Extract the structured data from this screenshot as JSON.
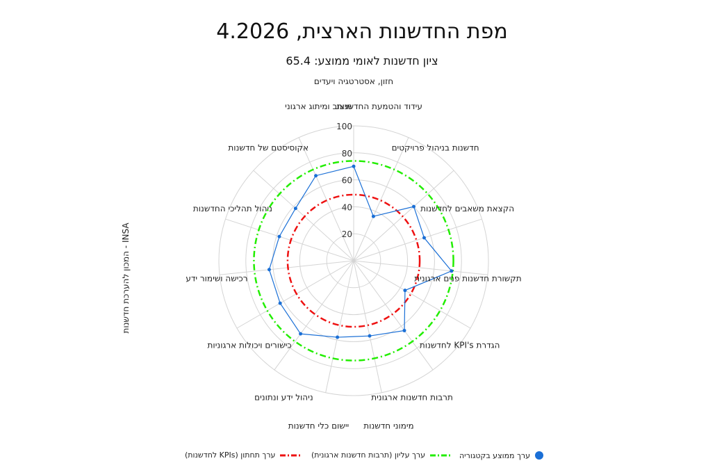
{
  "chart_data": {
    "type": "radar",
    "title": "מפת החדשנות הארצית, 4.2026",
    "subtitle": "ציון חדשנות לאומי ממוצע: 65.4",
    "ylabel": "INSA - המכון להערכת חדשנות",
    "rlim": [
      0,
      100
    ],
    "rticks": [
      20,
      40,
      60,
      80,
      100
    ],
    "grid": true,
    "legend_position": "bottom",
    "categories": [
      "חזון, אסטרטגיה ויעדים",
      "עידוד והטמעת החדשנות",
      "חדשנות בניהול פרויקטים",
      "הקצאת משאבים לחדשנות",
      "תקשורת חדשנות פנים ארגונית",
      "הגדרת KPI's לחדשנות",
      "תרבות חדשנות ארגונית",
      "מימוני חדשנות",
      "יישום כלי חדשנות",
      "ניהול ידע ונתונים",
      "כישורים ויכולות ארגוניות",
      "רכישה ושימור ידע",
      "ניהול תהליכי החדשנות",
      "אקוסיסטם של חדשנות",
      "מיצוב ומיתוג ארגוני"
    ],
    "series": [
      {
        "name": "ערך ממוצע בקטגוריה",
        "color": "#1a6fd6",
        "values": [
          70,
          36,
          60,
          55,
          73,
          44,
          64,
          57,
          58,
          67,
          63,
          63,
          58,
          58,
          69
        ]
      },
      {
        "name": "ערך עליון (תרבות חדשנות ארגונית)",
        "color": "#22ee00",
        "constant": 74
      },
      {
        "name": "ערך תחתון (KPIs לחדשנות)",
        "color": "#ee1111",
        "constant": 49
      }
    ]
  }
}
